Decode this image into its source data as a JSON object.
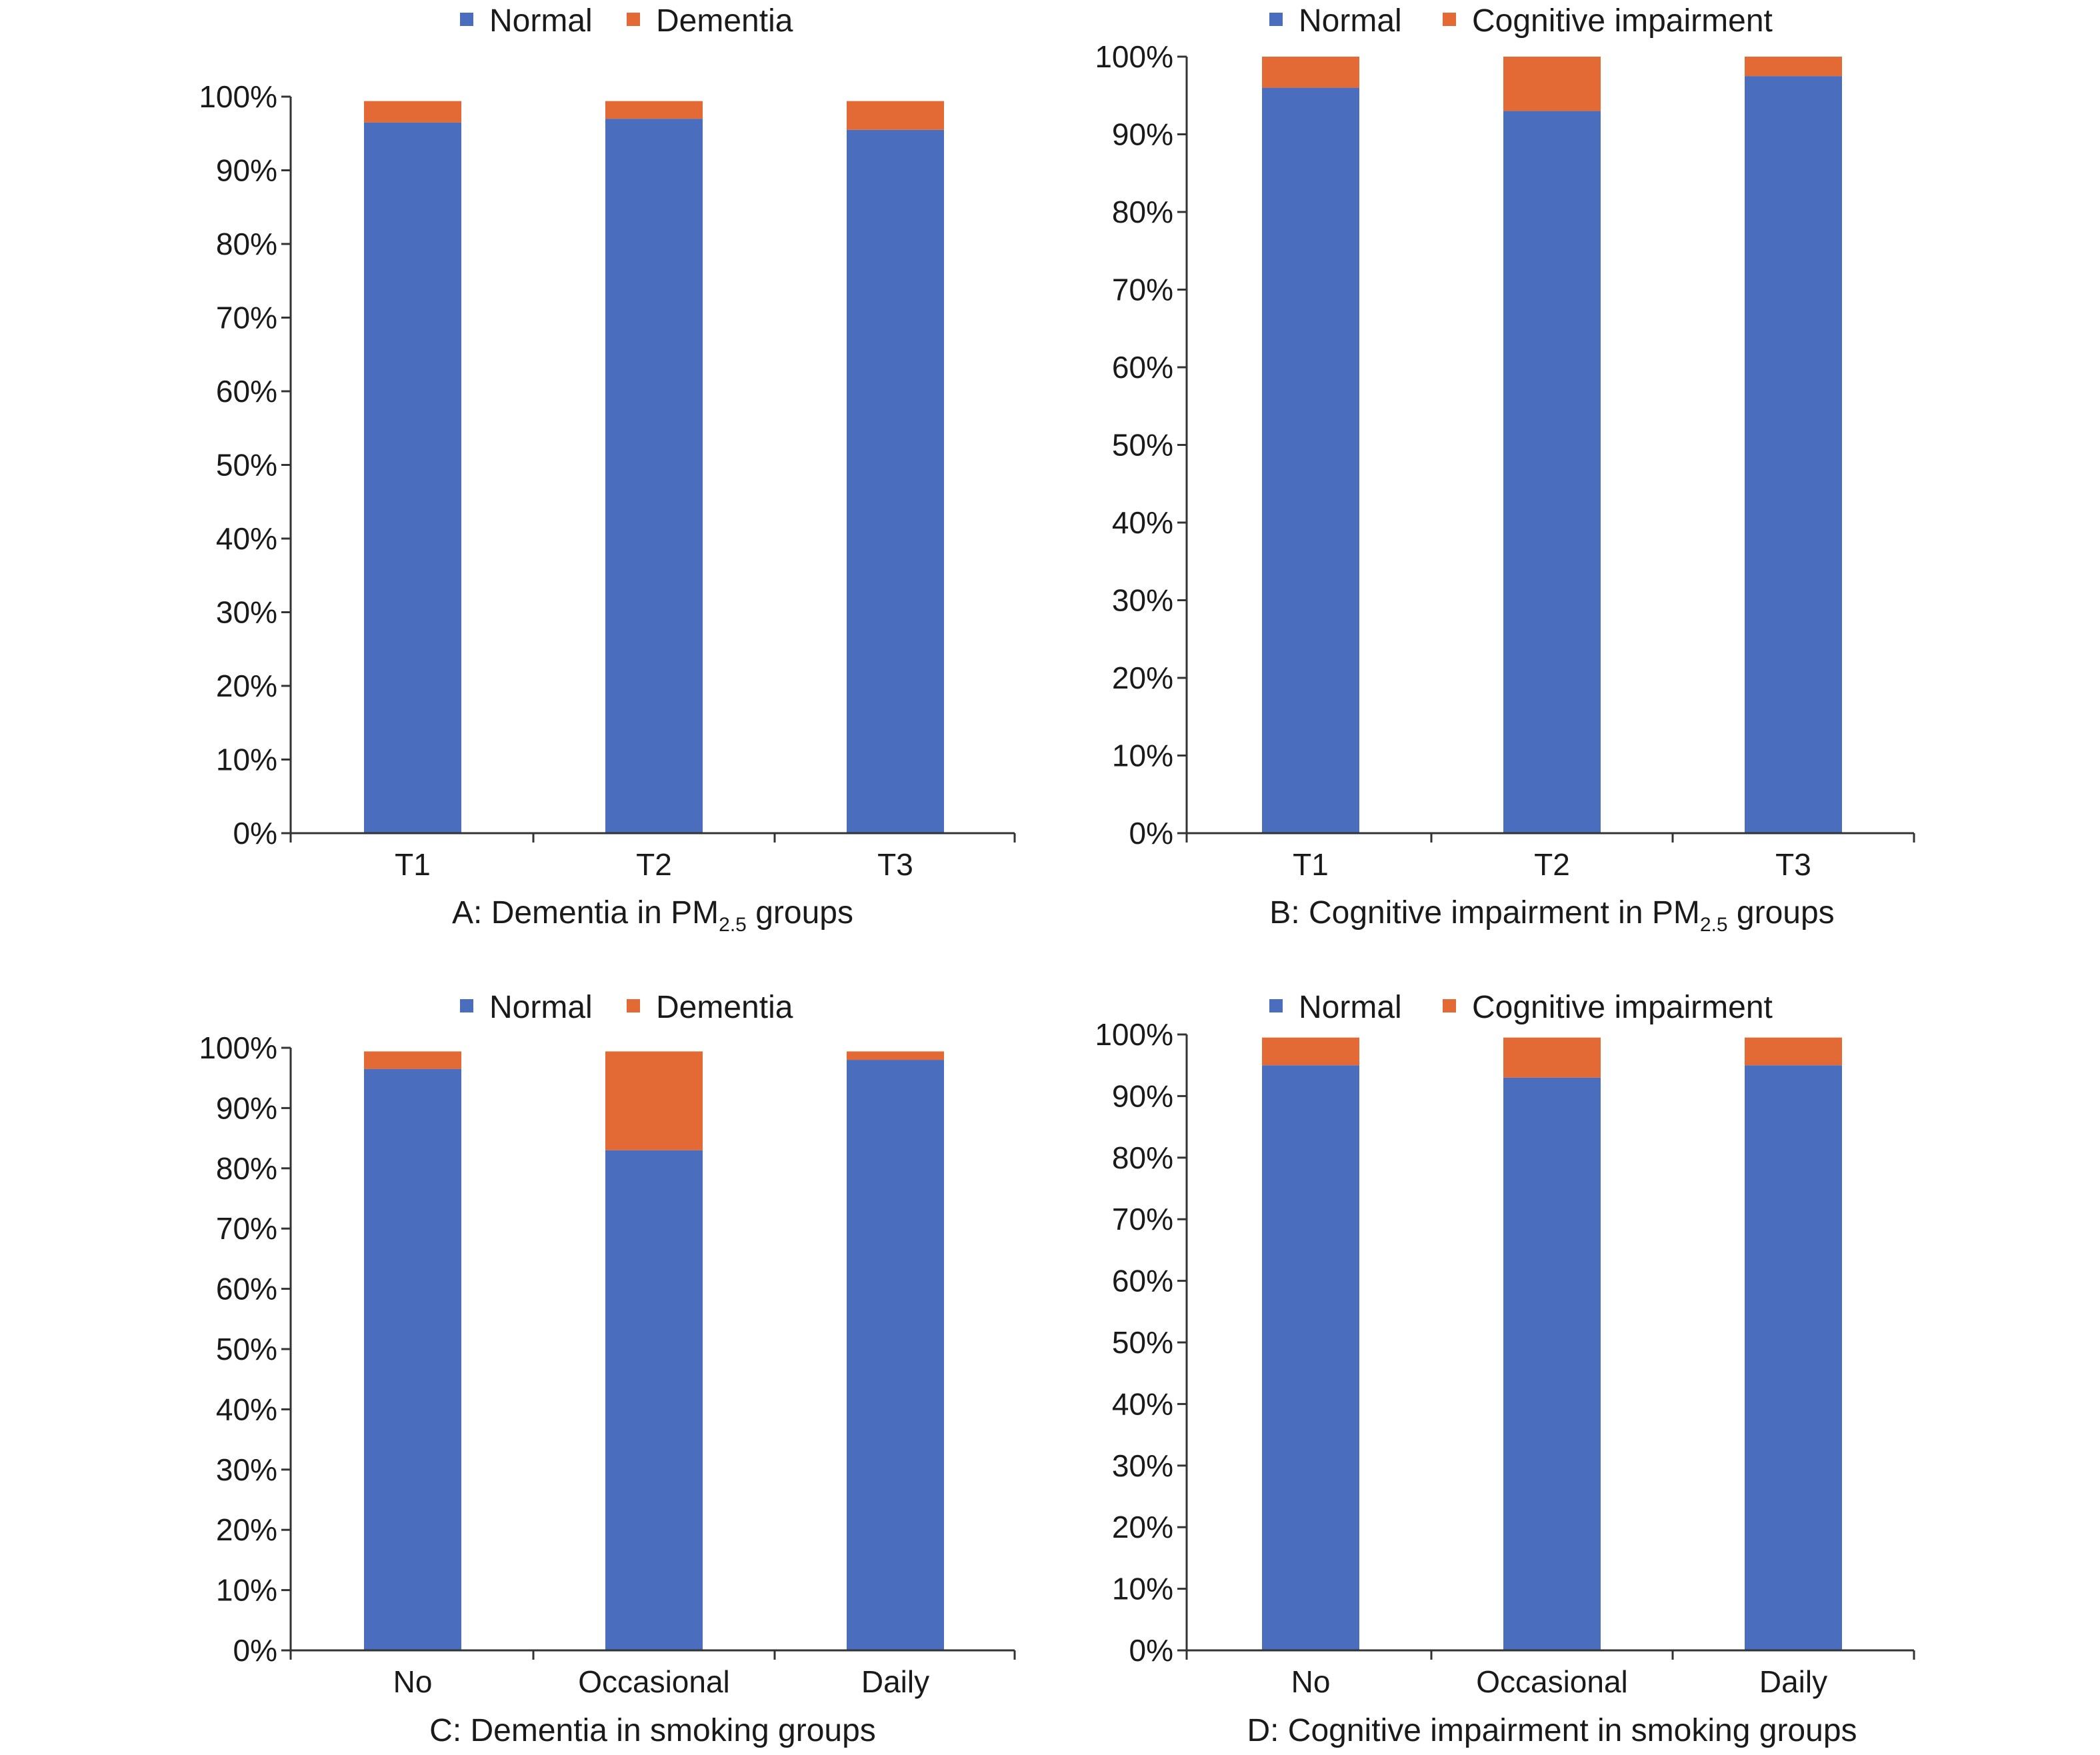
{
  "colors": {
    "normal": "#4A6EBD",
    "impaired": "#E46A35"
  },
  "chart_data": [
    {
      "id": "A",
      "type": "bar",
      "stacked": true,
      "title_text": "A: Dementia in PM",
      "title_sub": "2.5",
      "title_tail": " groups",
      "categories": [
        "T1",
        "T2",
        "T3"
      ],
      "series": [
        {
          "name": "Normal",
          "values": [
            96.5,
            97.0,
            95.5
          ]
        },
        {
          "name": "Dementia",
          "values": [
            2.9,
            2.4,
            3.9
          ]
        }
      ],
      "ylim": [
        0,
        100
      ],
      "yticks": [
        "0%",
        "10%",
        "20%",
        "30%",
        "40%",
        "50%",
        "60%",
        "70%",
        "80%",
        "90%",
        "100%"
      ],
      "legend": "top",
      "grid": false
    },
    {
      "id": "B",
      "type": "bar",
      "stacked": true,
      "title_text": "B: Cognitive impairment in PM",
      "title_sub": "2.5",
      "title_tail": " groups",
      "categories": [
        "T1",
        "T2",
        "T3"
      ],
      "series": [
        {
          "name": "Normal",
          "values": [
            96.0,
            93.0,
            97.5
          ]
        },
        {
          "name": "Cognitive impairment",
          "values": [
            4.0,
            7.0,
            2.5
          ]
        }
      ],
      "ylim": [
        0,
        100
      ],
      "yticks": [
        "0%",
        "10%",
        "20%",
        "30%",
        "40%",
        "50%",
        "60%",
        "70%",
        "80%",
        "90%",
        "100%"
      ],
      "legend": "top",
      "grid": false
    },
    {
      "id": "C",
      "type": "bar",
      "stacked": true,
      "title_text": "C: Dementia in smoking groups",
      "title_sub": "",
      "title_tail": "",
      "categories": [
        "No",
        "Occasional",
        "Daily"
      ],
      "series": [
        {
          "name": "Normal",
          "values": [
            96.5,
            83.0,
            98.0
          ]
        },
        {
          "name": "Dementia",
          "values": [
            2.9,
            16.4,
            1.4
          ]
        }
      ],
      "ylim": [
        0,
        100
      ],
      "yticks": [
        "0%",
        "10%",
        "20%",
        "30%",
        "40%",
        "50%",
        "60%",
        "70%",
        "80%",
        "90%",
        "100%"
      ],
      "legend": "top",
      "grid": false
    },
    {
      "id": "D",
      "type": "bar",
      "stacked": true,
      "title_text": "D: Cognitive impairment  in smoking groups",
      "title_sub": "",
      "title_tail": "",
      "categories": [
        "No",
        "Occasional",
        "Daily"
      ],
      "series": [
        {
          "name": "Normal",
          "values": [
            95.0,
            93.0,
            95.0
          ]
        },
        {
          "name": "Cognitive impairment",
          "values": [
            4.5,
            6.5,
            4.5
          ]
        }
      ],
      "ylim": [
        0,
        100
      ],
      "yticks": [
        "0%",
        "10%",
        "20%",
        "30%",
        "40%",
        "50%",
        "60%",
        "70%",
        "80%",
        "90%",
        "100%"
      ],
      "legend": "top",
      "grid": false
    }
  ]
}
